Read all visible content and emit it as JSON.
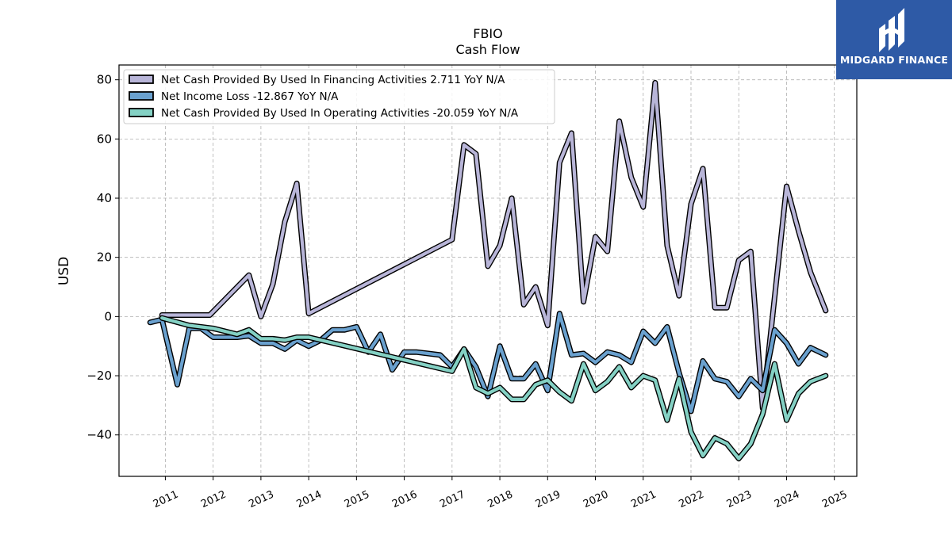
{
  "brand": {
    "name": "MIDGARD FINANCE",
    "color": "#2e5aa6"
  },
  "chart_data": {
    "type": "line",
    "title": "FBIO",
    "subtitle": "Cash Flow",
    "ylabel": "USD",
    "xlabel": "",
    "ylim": [
      -54,
      85
    ],
    "xlim": [
      2010.03,
      2025.47
    ],
    "yticks": [
      -40,
      -20,
      0,
      20,
      40,
      60,
      80
    ],
    "xticks": [
      2011,
      2012,
      2013,
      2014,
      2015,
      2016,
      2017,
      2018,
      2019,
      2020,
      2021,
      2022,
      2023,
      2024,
      2025
    ],
    "ytick_labels": [
      "−40",
      "−20",
      "0",
      "20",
      "40",
      "60",
      "80"
    ],
    "xtick_labels": [
      "2011",
      "2012",
      "2013",
      "2014",
      "2015",
      "2016",
      "2017",
      "2018",
      "2019",
      "2020",
      "2021",
      "2022",
      "2023",
      "2024",
      "2025"
    ],
    "grid": true,
    "legend_position": "top-left",
    "series": [
      {
        "name": "Net Cash Provided By Used In Financing Activities  2.711 YoY N/A",
        "color": "#b8b5d8",
        "points": [
          [
            2010.93,
            0.5
          ],
          [
            2011.93,
            0.5
          ],
          [
            2012.75,
            14
          ],
          [
            2013.0,
            0
          ],
          [
            2013.25,
            11
          ],
          [
            2013.5,
            32
          ],
          [
            2013.75,
            45
          ],
          [
            2014.0,
            1
          ],
          [
            2017.0,
            26
          ],
          [
            2017.25,
            58
          ],
          [
            2017.5,
            55
          ],
          [
            2017.75,
            17
          ],
          [
            2018.0,
            24
          ],
          [
            2018.25,
            40
          ],
          [
            2018.5,
            4
          ],
          [
            2018.75,
            10
          ],
          [
            2019.0,
            -3
          ],
          [
            2019.25,
            52
          ],
          [
            2019.5,
            62
          ],
          [
            2019.75,
            5
          ],
          [
            2020.0,
            27
          ],
          [
            2020.25,
            22
          ],
          [
            2020.5,
            66
          ],
          [
            2020.75,
            47
          ],
          [
            2021.0,
            37
          ],
          [
            2021.25,
            79
          ],
          [
            2021.5,
            24
          ],
          [
            2021.75,
            7
          ],
          [
            2022.0,
            38
          ],
          [
            2022.25,
            50
          ],
          [
            2022.5,
            3
          ],
          [
            2022.75,
            3
          ],
          [
            2023.0,
            19
          ],
          [
            2023.25,
            22
          ],
          [
            2023.5,
            -31
          ],
          [
            2024.0,
            44
          ],
          [
            2024.25,
            29
          ],
          [
            2024.5,
            15
          ],
          [
            2024.82,
            2
          ]
        ]
      },
      {
        "name": "Net Income Loss  -12.867 YoY N/A",
        "color": "#6aa1cf",
        "points": [
          [
            2010.68,
            -2
          ],
          [
            2010.93,
            -1
          ],
          [
            2011.25,
            -23
          ],
          [
            2011.5,
            -4
          ],
          [
            2011.75,
            -4
          ],
          [
            2012.0,
            -7
          ],
          [
            2012.5,
            -7
          ],
          [
            2012.75,
            -6.5
          ],
          [
            2013.0,
            -9
          ],
          [
            2013.25,
            -9
          ],
          [
            2013.5,
            -11
          ],
          [
            2013.75,
            -8
          ],
          [
            2014.0,
            -10
          ],
          [
            2014.25,
            -8
          ],
          [
            2014.5,
            -4.5
          ],
          [
            2014.75,
            -4.5
          ],
          [
            2015.0,
            -3.5
          ],
          [
            2015.25,
            -12
          ],
          [
            2015.5,
            -6
          ],
          [
            2015.75,
            -18
          ],
          [
            2016.0,
            -12
          ],
          [
            2016.25,
            -12
          ],
          [
            2016.5,
            -12.5
          ],
          [
            2016.75,
            -13
          ],
          [
            2017.0,
            -17
          ],
          [
            2017.25,
            -11
          ],
          [
            2017.5,
            -17
          ],
          [
            2017.75,
            -27
          ],
          [
            2018.0,
            -10
          ],
          [
            2018.25,
            -21
          ],
          [
            2018.5,
            -21
          ],
          [
            2018.75,
            -16
          ],
          [
            2019.0,
            -25
          ],
          [
            2019.25,
            1
          ],
          [
            2019.5,
            -13
          ],
          [
            2019.75,
            -12.5
          ],
          [
            2020.0,
            -15.5
          ],
          [
            2020.25,
            -12
          ],
          [
            2020.5,
            -13
          ],
          [
            2020.75,
            -15.5
          ],
          [
            2021.0,
            -5
          ],
          [
            2021.25,
            -9
          ],
          [
            2021.5,
            -3.5
          ],
          [
            2021.75,
            -19
          ],
          [
            2022.0,
            -32
          ],
          [
            2022.25,
            -15
          ],
          [
            2022.5,
            -21
          ],
          [
            2022.75,
            -22
          ],
          [
            2023.0,
            -27
          ],
          [
            2023.25,
            -21
          ],
          [
            2023.5,
            -25
          ],
          [
            2023.75,
            -4.5
          ],
          [
            2024.0,
            -9
          ],
          [
            2024.25,
            -16
          ],
          [
            2024.5,
            -10.5
          ],
          [
            2024.82,
            -13
          ]
        ]
      },
      {
        "name": "Net Cash Provided By Used In Operating Activities  -20.059 YoY N/A",
        "color": "#84d1c4",
        "points": [
          [
            2010.93,
            -0.5
          ],
          [
            2011.5,
            -3
          ],
          [
            2012.0,
            -4
          ],
          [
            2012.25,
            -5
          ],
          [
            2012.5,
            -6
          ],
          [
            2012.75,
            -4.5
          ],
          [
            2013.0,
            -7.5
          ],
          [
            2013.25,
            -7.5
          ],
          [
            2013.5,
            -8
          ],
          [
            2013.75,
            -7
          ],
          [
            2014.0,
            -7
          ],
          [
            2017.0,
            -18.5
          ],
          [
            2017.25,
            -11
          ],
          [
            2017.5,
            -24
          ],
          [
            2017.75,
            -26
          ],
          [
            2018.0,
            -24
          ],
          [
            2018.25,
            -28
          ],
          [
            2018.5,
            -28
          ],
          [
            2018.75,
            -23
          ],
          [
            2019.0,
            -21.5
          ],
          [
            2019.25,
            -25.5
          ],
          [
            2019.5,
            -28.5
          ],
          [
            2019.75,
            -16
          ],
          [
            2020.0,
            -25
          ],
          [
            2020.25,
            -22
          ],
          [
            2020.5,
            -17
          ],
          [
            2020.75,
            -24
          ],
          [
            2021.0,
            -20
          ],
          [
            2021.25,
            -21.5
          ],
          [
            2021.5,
            -35
          ],
          [
            2021.75,
            -21
          ],
          [
            2022.0,
            -39
          ],
          [
            2022.25,
            -47
          ],
          [
            2022.5,
            -41
          ],
          [
            2022.75,
            -43
          ],
          [
            2023.0,
            -48
          ],
          [
            2023.25,
            -43
          ],
          [
            2023.5,
            -33
          ],
          [
            2023.75,
            -16
          ],
          [
            2024.0,
            -35
          ],
          [
            2024.25,
            -26
          ],
          [
            2024.5,
            -22
          ],
          [
            2024.82,
            -20
          ]
        ]
      }
    ]
  }
}
